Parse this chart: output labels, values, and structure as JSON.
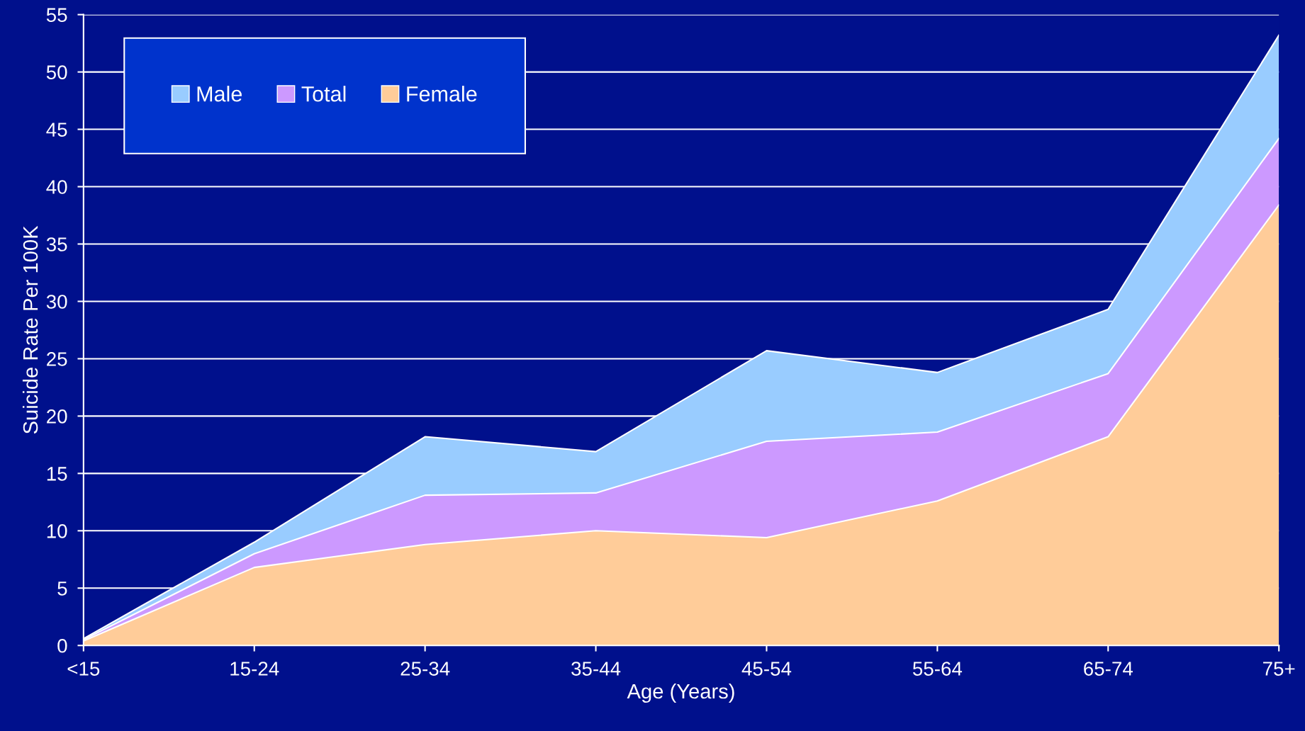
{
  "chart_data": {
    "type": "area",
    "xlabel": "Age (Years)",
    "ylabel": "Suicide Rate Per 100K",
    "categories": [
      "<15",
      "15-24",
      "25-34",
      "35-44",
      "45-54",
      "55-64",
      "65-74",
      "75+"
    ],
    "series": [
      {
        "name": "Male",
        "color": "#99ccff",
        "values": [
          0.6,
          9.0,
          18.2,
          16.9,
          25.7,
          23.8,
          29.3,
          53.2
        ]
      },
      {
        "name": "Total",
        "color": "#cc99ff",
        "values": [
          0.5,
          8.0,
          13.1,
          13.3,
          17.8,
          18.6,
          23.7,
          44.2
        ]
      },
      {
        "name": "Female",
        "color": "#ffcc99",
        "values": [
          0.4,
          6.8,
          8.8,
          10.0,
          9.4,
          12.6,
          18.2,
          38.4
        ]
      }
    ],
    "ylim": [
      0,
      55
    ],
    "yticks": [
      0,
      5,
      10,
      15,
      20,
      25,
      30,
      35,
      40,
      45,
      50,
      55
    ],
    "grid": "y",
    "legend": "top left"
  }
}
